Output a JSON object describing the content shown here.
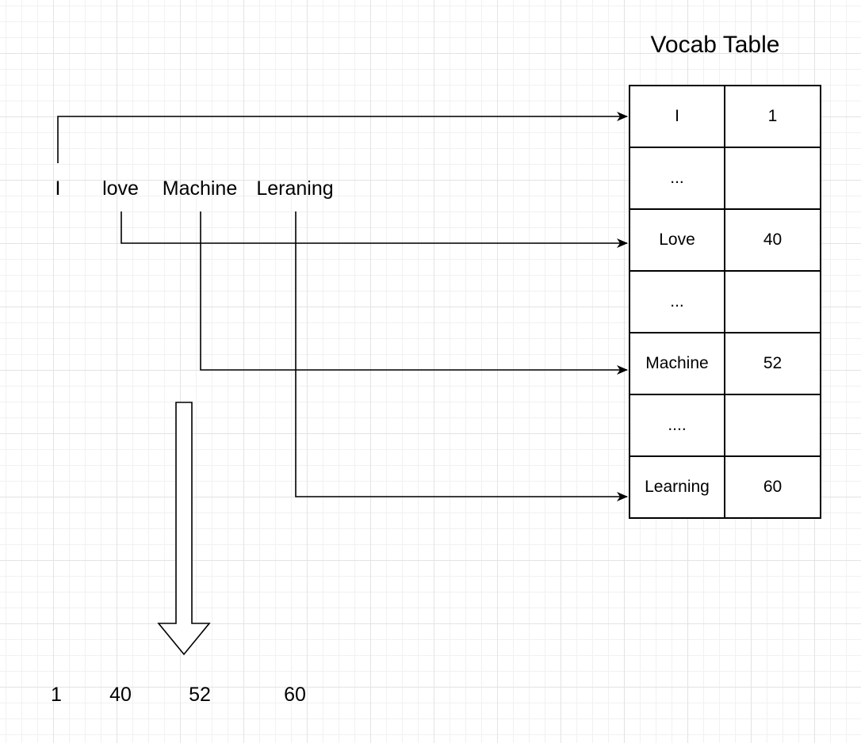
{
  "sentence_tokens": [
    "I",
    "love",
    "Machine",
    "Leraning"
  ],
  "vocab_table": {
    "title": "Vocab Table",
    "rows": [
      {
        "word": "I",
        "id": "1"
      },
      {
        "word": "...",
        "id": ""
      },
      {
        "word": "Love",
        "id": "40"
      },
      {
        "word": "...",
        "id": ""
      },
      {
        "word": "Machine",
        "id": "52"
      },
      {
        "word": "....",
        "id": ""
      },
      {
        "word": "Learning",
        "id": "60"
      }
    ]
  },
  "output_ids": [
    "1",
    "40",
    "52",
    "60"
  ],
  "colors": {
    "stroke": "#000000",
    "background": "#ffffff",
    "grid": "#e3e3e3"
  }
}
